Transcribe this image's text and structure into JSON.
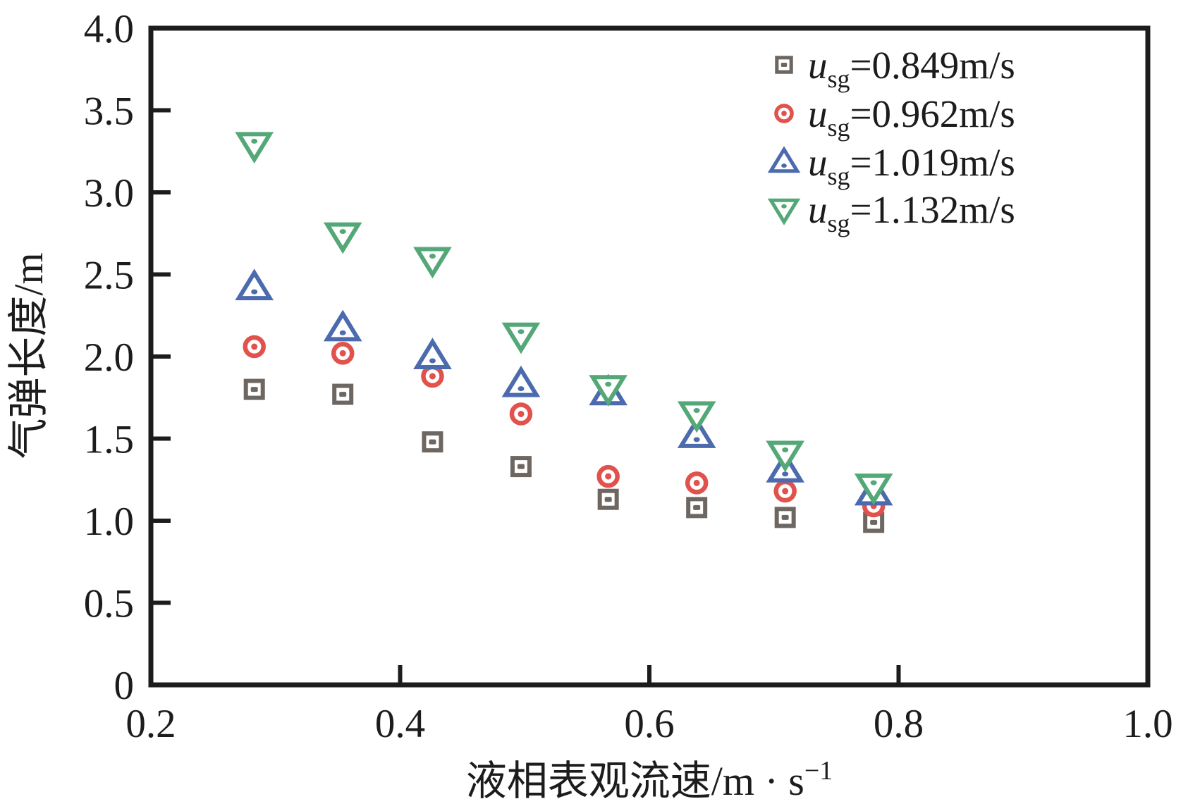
{
  "chart_data": {
    "type": "scatter",
    "title": "",
    "xlabel": "液相表观流速/m·s⁻¹",
    "xlabel_main": "液相表观流速/m · s",
    "xlabel_superscript": "−1",
    "ylabel": "气弹长度/m",
    "xlim": [
      0.2,
      1.0
    ],
    "ylim": [
      0,
      4.0
    ],
    "grid": false,
    "legend_position": "top-right-inside",
    "xticks": {
      "values": [
        0.2,
        0.4,
        0.6,
        0.8,
        1.0
      ],
      "labels": [
        "0.2",
        "0.4",
        "0.6",
        "0.8",
        "1.0"
      ]
    },
    "yticks": {
      "values": [
        0,
        0.5,
        1.0,
        1.5,
        2.0,
        2.5,
        3.0,
        3.5,
        4.0
      ],
      "labels": [
        "0",
        "0.5",
        "1.0",
        "1.5",
        "2.0",
        "2.5",
        "3.0",
        "3.5",
        "4.0"
      ]
    },
    "x": [
      0.283,
      0.354,
      0.426,
      0.497,
      0.567,
      0.638,
      0.709,
      0.78
    ],
    "series": [
      {
        "name": "u_sg=0.849m/s",
        "legend": {
          "var": "u",
          "sub": "sg",
          "rest": "=0.849m/s"
        },
        "marker": "square",
        "color": "#6e6660",
        "values": [
          1.8,
          1.77,
          1.48,
          1.33,
          1.13,
          1.08,
          1.02,
          0.99
        ]
      },
      {
        "name": "u_sg=0.962m/s",
        "legend": {
          "var": "u",
          "sub": "sg",
          "rest": "=0.962m/s"
        },
        "marker": "circle",
        "color": "#e2524c",
        "values": [
          2.06,
          2.02,
          1.88,
          1.65,
          1.27,
          1.23,
          1.18,
          1.09
        ]
      },
      {
        "name": "u_sg=1.019m/s",
        "legend": {
          "var": "u",
          "sub": "sg",
          "rest": "=1.019m/s"
        },
        "marker": "triangle-up",
        "color": "#4c6bae",
        "values": [
          2.42,
          2.17,
          2.0,
          1.83,
          1.78,
          1.52,
          1.31,
          1.17
        ]
      },
      {
        "name": "u_sg=1.132m/s",
        "legend": {
          "var": "u",
          "sub": "sg",
          "rest": "=1.132m/s"
        },
        "marker": "triangle-down",
        "color": "#54a878",
        "values": [
          3.29,
          2.74,
          2.59,
          2.13,
          1.81,
          1.65,
          1.41,
          1.21
        ]
      }
    ]
  },
  "style": {
    "ink_color": "#1c1c1c",
    "frame_width": 7,
    "tick_length": 28
  }
}
